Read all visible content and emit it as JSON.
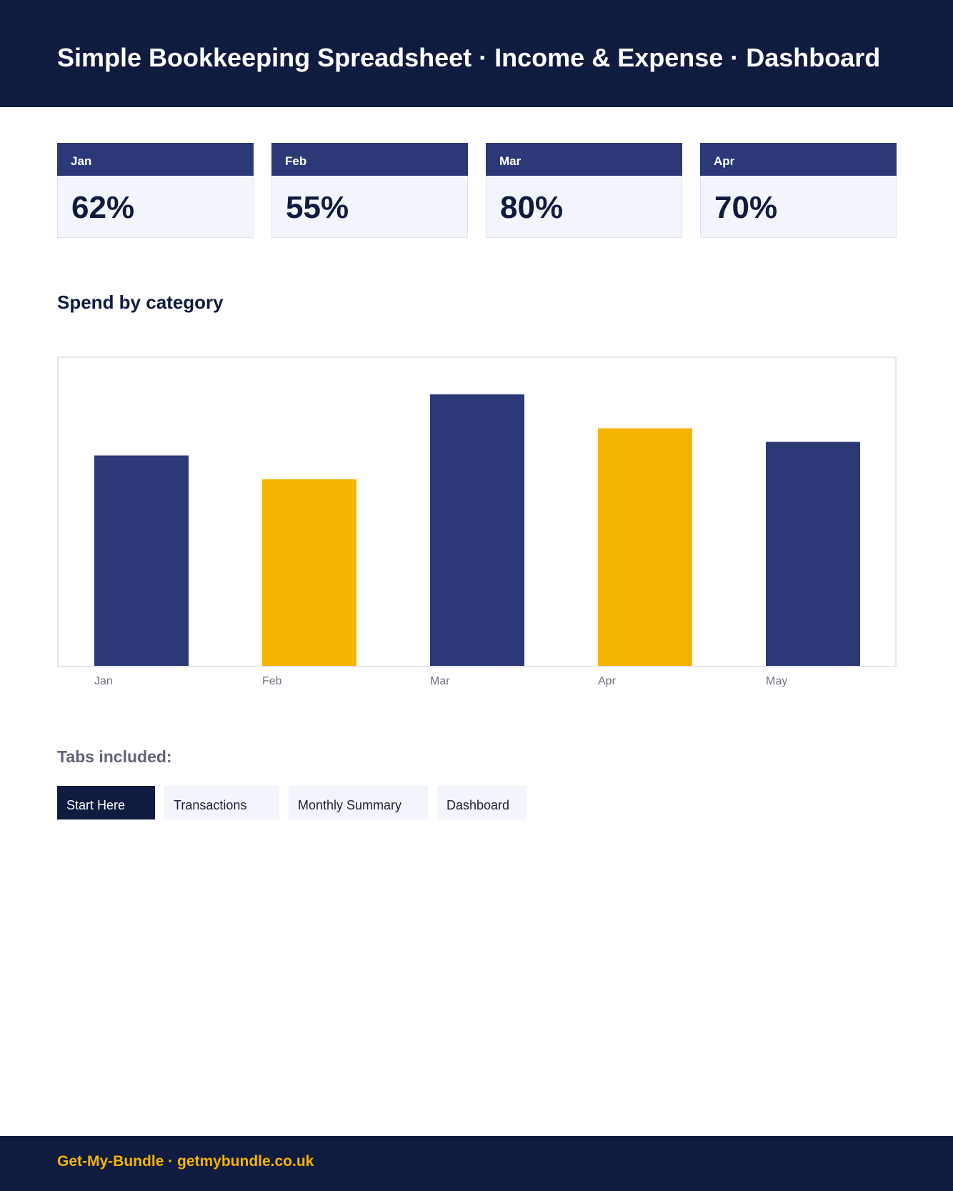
{
  "header": {
    "title": "Simple Bookkeeping Spreadsheet · Income & Expense · Dashboard"
  },
  "cards": [
    {
      "label": "Jan",
      "value": "62%"
    },
    {
      "label": "Feb",
      "value": "55%"
    },
    {
      "label": "Mar",
      "value": "80%"
    },
    {
      "label": "Apr",
      "value": "70%"
    }
  ],
  "section": {
    "title": "Spend by category"
  },
  "chart_data": {
    "type": "bar",
    "categories": [
      "Jan",
      "Feb",
      "Mar",
      "Apr",
      "May"
    ],
    "values": [
      62,
      55,
      80,
      70,
      66
    ],
    "ylim": [
      0,
      100
    ],
    "grid": false,
    "colors": [
      "#2b3977",
      "#f4b400",
      "#2b3977",
      "#f4b400",
      "#2b3977"
    ]
  },
  "tabs_section": {
    "title": "Tabs included:",
    "tabs": [
      {
        "label": "Start Here",
        "active": true
      },
      {
        "label": "Transactions",
        "active": false
      },
      {
        "label": "Monthly Summary",
        "active": false
      },
      {
        "label": "Dashboard",
        "active": false
      }
    ]
  },
  "footer": {
    "text": "Get-My-Bundle · getmybundle.co.uk"
  },
  "colors": {
    "navy": "#0f1b3f",
    "blue": "#2b3977",
    "gold": "#f4b400",
    "card_bg": "#f3f5fc"
  }
}
